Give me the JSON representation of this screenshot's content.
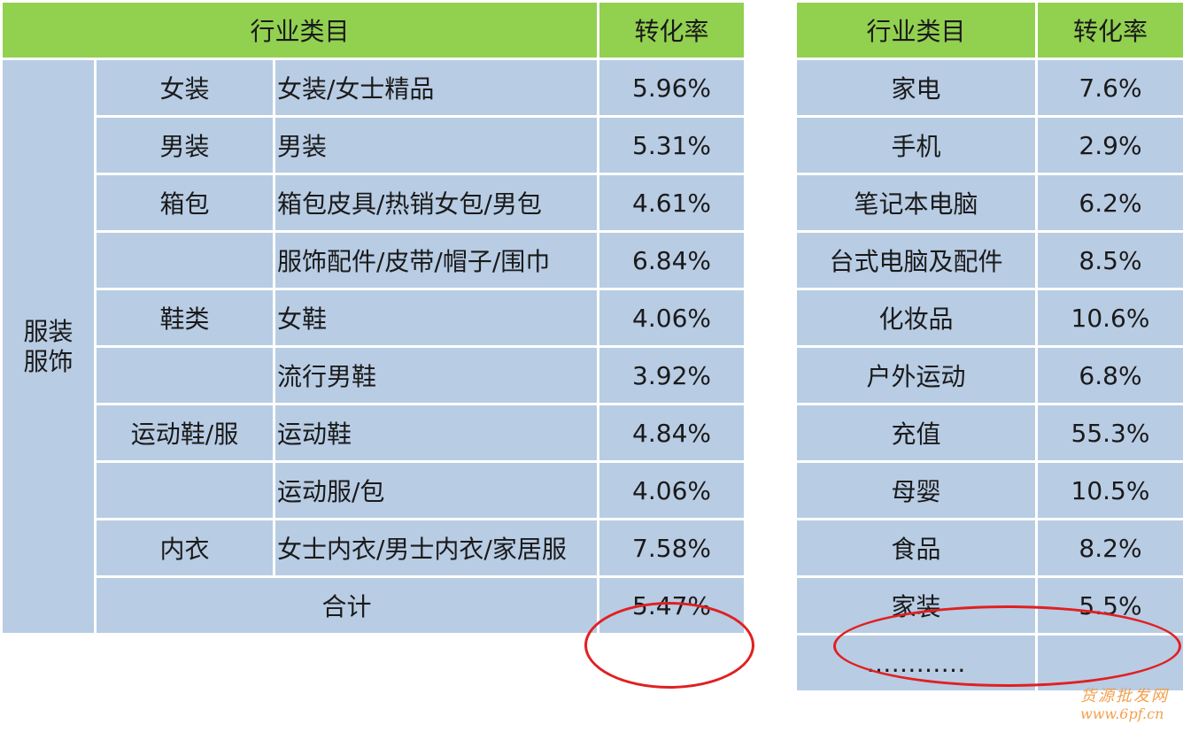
{
  "left_table": {
    "header": {
      "category": "行业类目",
      "rate": "转化率"
    },
    "group_label": "服装\n服饰",
    "rows": [
      {
        "sub": "女装",
        "detail": "女装/女士精品",
        "rate": "5.96%"
      },
      {
        "sub": "男装",
        "detail": "男装",
        "rate": "5.31%"
      },
      {
        "sub": "箱包",
        "detail": "箱包皮具/热销女包/男包",
        "rate": "4.61%"
      },
      {
        "sub": "",
        "detail": "服饰配件/皮带/帽子/围巾",
        "rate": "6.84%"
      },
      {
        "sub": "鞋类",
        "detail": "女鞋",
        "rate": "4.06%"
      },
      {
        "sub": "",
        "detail": "流行男鞋",
        "rate": "3.92%"
      },
      {
        "sub": "运动鞋/服",
        "detail": "运动鞋",
        "rate": "4.84%"
      },
      {
        "sub": "",
        "detail": "运动服/包",
        "rate": "4.06%"
      },
      {
        "sub": "内衣",
        "detail": "女士内衣/男士内衣/家居服",
        "rate": "7.58%"
      }
    ],
    "total": {
      "label": "合计",
      "rate": "5.47%"
    }
  },
  "right_table": {
    "header": {
      "category": "行业类目",
      "rate": "转化率"
    },
    "rows": [
      {
        "category": "家电",
        "rate": "7.6%"
      },
      {
        "category": "手机",
        "rate": "2.9%"
      },
      {
        "category": "笔记本电脑",
        "rate": "6.2%"
      },
      {
        "category": "台式电脑及配件",
        "rate": "8.5%"
      },
      {
        "category": "化妆品",
        "rate": "10.6%"
      },
      {
        "category": "户外运动",
        "rate": "6.8%"
      },
      {
        "category": "充值",
        "rate": "55.3%"
      },
      {
        "category": "母婴",
        "rate": "10.5%"
      },
      {
        "category": "食品",
        "rate": "8.2%"
      },
      {
        "category": "家装",
        "rate": "5.5%"
      },
      {
        "category": "…………",
        "rate": ""
      }
    ]
  },
  "watermark": {
    "line1": "货源批发网",
    "line2": "www.6pf.cn"
  },
  "colors": {
    "header": "#92d050",
    "cell": "#b8cce4",
    "highlight": "#e02020",
    "watermark": "#f4a04c"
  }
}
